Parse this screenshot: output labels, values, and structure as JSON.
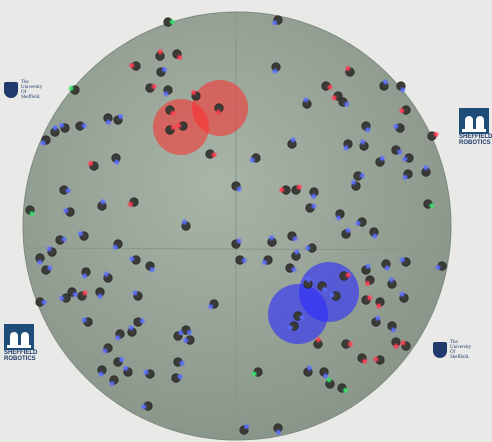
{
  "logos": {
    "uos_top_left": [
      "The",
      "University",
      "Of",
      "Sheffield."
    ],
    "sr_right": [
      "SHEFFIELD",
      "ROBOTICS"
    ],
    "sr_left": [
      "SHEFFIELD",
      "ROBOTICS"
    ],
    "uos_bottom_right": [
      "The",
      "University",
      "Of",
      "Sheffield."
    ]
  },
  "colors": {
    "background": "#e9eae7",
    "arena": "#9aa89b",
    "red_zone": "#ff2a2a",
    "blue_zone": "#2b2bff",
    "robot_body": "#3a3a36",
    "led_blue": "#5a6cff",
    "led_red": "#ff3b50",
    "led_green": "#35e06a",
    "logo_navy": "#1f3a6b"
  },
  "zones": [
    {
      "name": "red-zone-a",
      "color": "red"
    },
    {
      "name": "red-zone-b",
      "color": "red"
    },
    {
      "name": "blue-zone-a",
      "color": "blue"
    },
    {
      "name": "blue-zone-b",
      "color": "blue"
    }
  ]
}
